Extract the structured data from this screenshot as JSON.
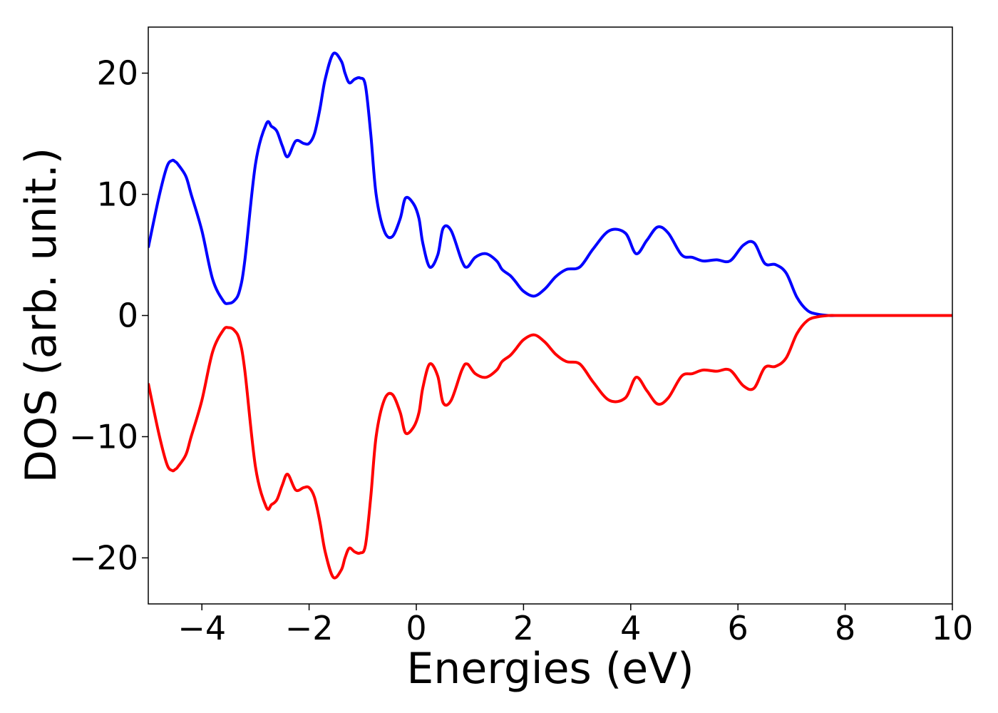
{
  "chart_data": {
    "type": "line",
    "xlabel": "Energies (eV)",
    "ylabel": "DOS (arb. unit.)",
    "xlim": [
      -5,
      10
    ],
    "ylim": [
      -23.8,
      23.8
    ],
    "xticks": [
      -4,
      -2,
      0,
      2,
      4,
      6,
      8,
      10
    ],
    "yticks": [
      -20,
      -10,
      0,
      10,
      20
    ],
    "xtick_labels": [
      "−4",
      "−2",
      "0",
      "2",
      "4",
      "6",
      "8",
      "10"
    ],
    "ytick_labels": [
      "−20",
      "−10",
      "0",
      "10",
      "20"
    ],
    "grid": false,
    "legend": "none",
    "series": [
      {
        "color": "#0000ff",
        "x": [
          -5.0,
          -4.8,
          -4.65,
          -4.55,
          -4.5,
          -4.45,
          -4.3,
          -4.2,
          -4.0,
          -3.8,
          -3.6,
          -3.5,
          -3.4,
          -3.3,
          -3.2,
          -3.0,
          -2.8,
          -2.7,
          -2.6,
          -2.5,
          -2.4,
          -2.25,
          -2.1,
          -2.0,
          -1.9,
          -1.8,
          -1.7,
          -1.55,
          -1.4,
          -1.33,
          -1.25,
          -1.15,
          -1.05,
          -0.95,
          -0.85,
          -0.75,
          -0.6,
          -0.45,
          -0.3,
          -0.2,
          -0.05,
          0.05,
          0.12,
          0.25,
          0.4,
          0.5,
          0.65,
          0.85,
          0.95,
          1.1,
          1.3,
          1.5,
          1.6,
          1.75,
          1.85,
          2.0,
          2.2,
          2.4,
          2.6,
          2.8,
          3.05,
          3.3,
          3.6,
          3.9,
          4.1,
          4.3,
          4.5,
          4.7,
          4.95,
          5.15,
          5.35,
          5.6,
          5.85,
          6.1,
          6.3,
          6.5,
          6.7,
          6.9,
          7.1,
          7.3,
          7.5,
          7.7,
          7.85,
          8.0,
          8.15,
          8.3,
          8.6,
          9.0,
          9.5,
          10.0
        ],
        "y": [
          5.6,
          9.8,
          12.3,
          12.8,
          12.7,
          12.5,
          11.5,
          10.0,
          7.0,
          3.0,
          1.2,
          1.0,
          1.2,
          2.0,
          4.5,
          12.5,
          15.8,
          15.6,
          15.2,
          14.0,
          13.1,
          14.4,
          14.2,
          14.2,
          15.0,
          17.0,
          19.5,
          21.6,
          21.0,
          20.0,
          19.2,
          19.5,
          19.6,
          19.0,
          15.0,
          10.0,
          7.0,
          6.5,
          8.0,
          9.7,
          9.2,
          8.0,
          6.0,
          4.0,
          5.0,
          7.2,
          7.0,
          4.5,
          4.0,
          4.8,
          5.1,
          4.5,
          3.8,
          3.3,
          2.8,
          2.0,
          1.6,
          2.2,
          3.2,
          3.8,
          4.0,
          5.5,
          7.0,
          6.8,
          5.1,
          6.2,
          7.3,
          6.8,
          5.0,
          4.8,
          4.5,
          4.6,
          4.5,
          5.8,
          6.0,
          4.3,
          4.2,
          3.5,
          1.5,
          0.4,
          0.1,
          0.0,
          0.0,
          0.0,
          0.0,
          0.0,
          0.0,
          0.0,
          0.0,
          0.0
        ]
      },
      {
        "color": "#ff0000",
        "x": [
          -5.0,
          -4.8,
          -4.65,
          -4.55,
          -4.5,
          -4.45,
          -4.3,
          -4.2,
          -4.0,
          -3.8,
          -3.6,
          -3.5,
          -3.4,
          -3.3,
          -3.2,
          -3.0,
          -2.8,
          -2.7,
          -2.6,
          -2.5,
          -2.4,
          -2.25,
          -2.1,
          -2.0,
          -1.9,
          -1.8,
          -1.7,
          -1.55,
          -1.4,
          -1.33,
          -1.25,
          -1.15,
          -1.05,
          -0.95,
          -0.85,
          -0.75,
          -0.6,
          -0.45,
          -0.3,
          -0.2,
          -0.05,
          0.05,
          0.12,
          0.25,
          0.4,
          0.5,
          0.65,
          0.85,
          0.95,
          1.1,
          1.3,
          1.5,
          1.6,
          1.75,
          1.85,
          2.0,
          2.2,
          2.4,
          2.6,
          2.8,
          3.05,
          3.3,
          3.6,
          3.9,
          4.1,
          4.3,
          4.5,
          4.7,
          4.95,
          5.15,
          5.35,
          5.6,
          5.85,
          6.1,
          6.3,
          6.5,
          6.7,
          6.9,
          7.1,
          7.3,
          7.5,
          7.7,
          7.85,
          8.0,
          8.15,
          8.3,
          8.6,
          9.0,
          9.5,
          10.0
        ],
        "y": [
          -5.6,
          -9.8,
          -12.3,
          -12.8,
          -12.7,
          -12.5,
          -11.5,
          -10.0,
          -7.0,
          -3.0,
          -1.2,
          -1.0,
          -1.2,
          -2.0,
          -4.5,
          -12.5,
          -15.8,
          -15.6,
          -15.2,
          -14.0,
          -13.1,
          -14.4,
          -14.2,
          -14.2,
          -15.0,
          -17.0,
          -19.5,
          -21.6,
          -21.0,
          -20.0,
          -19.2,
          -19.5,
          -19.6,
          -19.0,
          -15.0,
          -10.0,
          -7.0,
          -6.5,
          -8.0,
          -9.7,
          -9.2,
          -8.0,
          -6.0,
          -4.0,
          -5.0,
          -7.2,
          -7.0,
          -4.5,
          -4.0,
          -4.8,
          -5.1,
          -4.5,
          -3.8,
          -3.3,
          -2.8,
          -2.0,
          -1.6,
          -2.2,
          -3.2,
          -3.8,
          -4.0,
          -5.5,
          -7.0,
          -6.8,
          -5.1,
          -6.2,
          -7.3,
          -6.8,
          -5.0,
          -4.8,
          -4.5,
          -4.6,
          -4.5,
          -5.8,
          -6.0,
          -4.3,
          -4.2,
          -3.5,
          -1.5,
          -0.4,
          -0.1,
          0.0,
          0.0,
          0.0,
          0.0,
          0.0,
          0.0,
          0.0,
          0.0,
          0.0
        ]
      }
    ]
  }
}
